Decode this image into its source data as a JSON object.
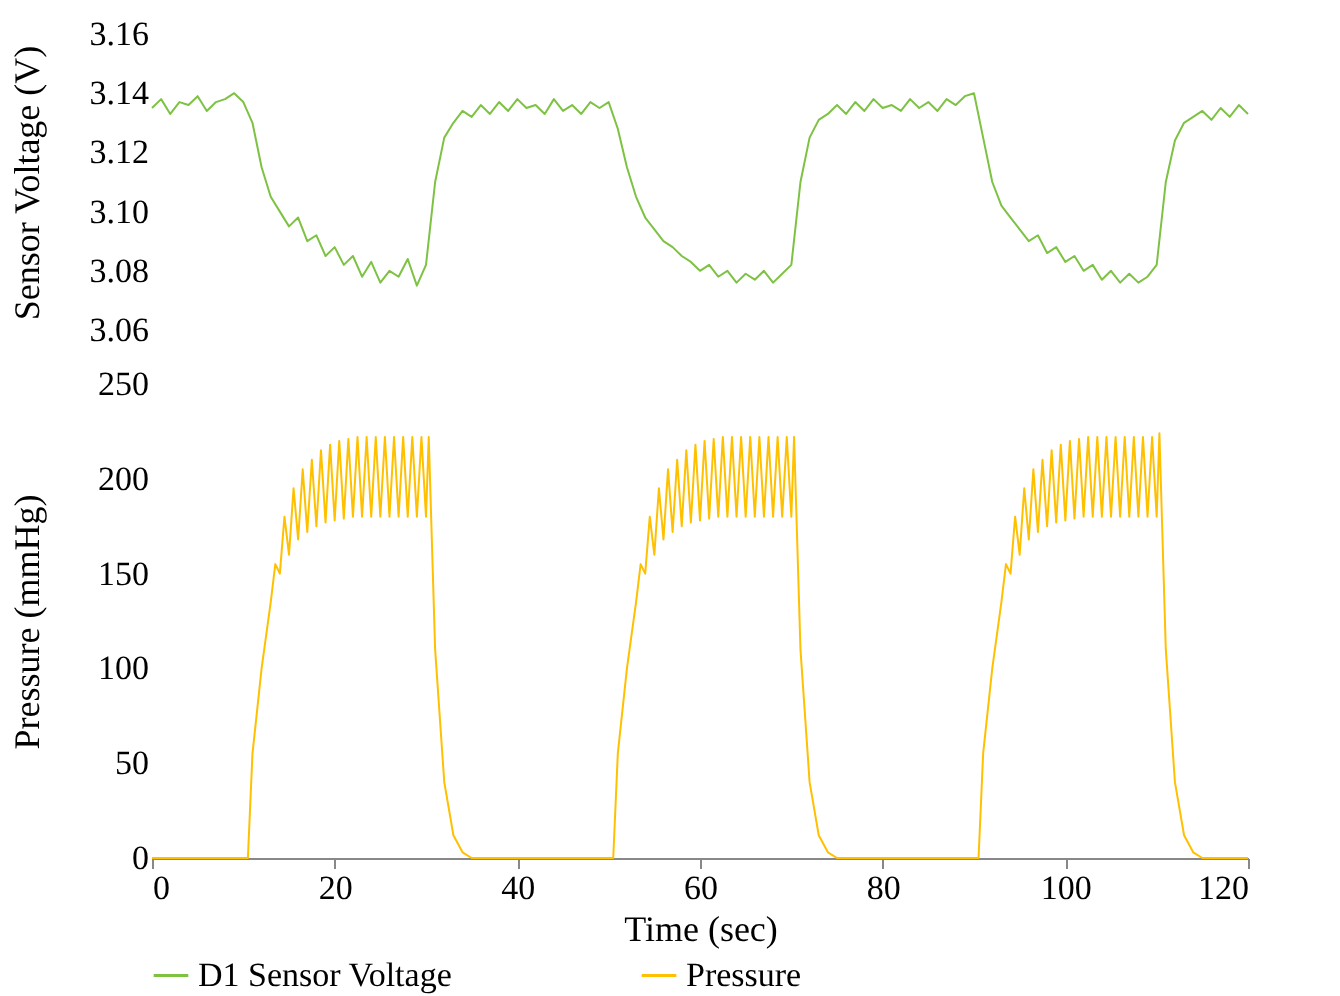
{
  "chart_data": [
    {
      "type": "line",
      "ylabel": "Sensor Voltage (V)",
      "xlim": [
        0,
        120
      ],
      "xticks": [
        0,
        20,
        40,
        60,
        80,
        100,
        120
      ],
      "ylim": [
        3.06,
        3.16
      ],
      "yticks": [
        3.06,
        3.08,
        {
          "value": 3.1,
          "label": "3.10"
        },
        3.12,
        3.14,
        3.16
      ],
      "tick_labels": "y",
      "grid": false,
      "line_style": "solid",
      "series": [
        {
          "name": "D1 Sensor Voltage",
          "color": "#7dc243",
          "x": [
            0,
            1,
            2,
            3,
            4,
            5,
            6,
            7,
            8,
            9,
            10,
            11,
            12,
            13,
            14,
            15,
            16,
            17,
            18,
            19,
            20,
            21,
            22,
            23,
            24,
            25,
            26,
            27,
            28,
            29,
            30,
            31,
            32,
            33,
            34,
            35,
            36,
            37,
            38,
            39,
            40,
            41,
            42,
            43,
            44,
            45,
            46,
            47,
            48,
            49,
            50,
            51,
            52,
            53,
            54,
            55,
            56,
            57,
            58,
            59,
            60,
            61,
            62,
            63,
            64,
            65,
            66,
            67,
            68,
            69,
            70,
            71,
            72,
            73,
            74,
            75,
            76,
            77,
            78,
            79,
            80,
            81,
            82,
            83,
            84,
            85,
            86,
            87,
            88,
            89,
            90,
            91,
            92,
            93,
            94,
            95,
            96,
            97,
            98,
            99,
            100,
            101,
            102,
            103,
            104,
            105,
            106,
            107,
            108,
            109,
            110,
            111,
            112,
            113,
            114,
            115,
            116,
            117,
            118,
            119,
            120
          ],
          "values": [
            3.135,
            3.138,
            3.133,
            3.137,
            3.136,
            3.139,
            3.134,
            3.137,
            3.138,
            3.14,
            3.137,
            3.13,
            3.115,
            3.105,
            3.1,
            3.095,
            3.098,
            3.09,
            3.092,
            3.085,
            3.088,
            3.082,
            3.085,
            3.078,
            3.083,
            3.076,
            3.08,
            3.078,
            3.084,
            3.075,
            3.082,
            3.11,
            3.125,
            3.13,
            3.134,
            3.132,
            3.136,
            3.133,
            3.137,
            3.134,
            3.138,
            3.135,
            3.136,
            3.133,
            3.138,
            3.134,
            3.136,
            3.133,
            3.137,
            3.135,
            3.137,
            3.128,
            3.115,
            3.105,
            3.098,
            3.094,
            3.09,
            3.088,
            3.085,
            3.083,
            3.08,
            3.082,
            3.078,
            3.08,
            3.076,
            3.079,
            3.077,
            3.08,
            3.076,
            3.079,
            3.082,
            3.11,
            3.125,
            3.131,
            3.133,
            3.136,
            3.133,
            3.137,
            3.134,
            3.138,
            3.135,
            3.136,
            3.134,
            3.138,
            3.135,
            3.137,
            3.134,
            3.138,
            3.136,
            3.139,
            3.14,
            3.125,
            3.11,
            3.102,
            3.098,
            3.094,
            3.09,
            3.092,
            3.086,
            3.088,
            3.083,
            3.085,
            3.08,
            3.082,
            3.077,
            3.08,
            3.076,
            3.079,
            3.076,
            3.078,
            3.082,
            3.11,
            3.124,
            3.13,
            3.132,
            3.134,
            3.131,
            3.135,
            3.132,
            3.136,
            3.133
          ]
        }
      ]
    },
    {
      "type": "line",
      "xlabel": "Time (sec)",
      "ylabel": "Pressure (mmHg)",
      "xlim": [
        0,
        120
      ],
      "xticks": [
        0,
        20,
        40,
        60,
        80,
        100,
        120
      ],
      "ylim": [
        0,
        250
      ],
      "yticks": [
        0,
        50,
        100,
        150,
        200,
        250
      ],
      "grid": false,
      "legend": "bottom",
      "line_style": "solid",
      "series": [
        {
          "name": "Pressure",
          "color": "#ffc000",
          "x": [
            0,
            10,
            10.5,
            11,
            12,
            13,
            13.5,
            14,
            14.5,
            15,
            15.5,
            16,
            16.5,
            17,
            17.5,
            18,
            18.5,
            19,
            19.5,
            20,
            20.5,
            21,
            21.5,
            22,
            22.5,
            23,
            23.5,
            24,
            24.5,
            25,
            25.5,
            26,
            26.5,
            27,
            27.5,
            28,
            28.5,
            29,
            29.5,
            30,
            30.3,
            31,
            32,
            33,
            34,
            35,
            50,
            50.5,
            51,
            52,
            53,
            53.5,
            54,
            54.5,
            55,
            55.5,
            56,
            56.5,
            57,
            57.5,
            58,
            58.5,
            59,
            59.5,
            60,
            60.5,
            61,
            61.5,
            62,
            62.5,
            63,
            63.5,
            64,
            64.5,
            65,
            65.5,
            66,
            66.5,
            67,
            67.5,
            68,
            68.5,
            69,
            69.5,
            70,
            70.3,
            71,
            72,
            73,
            74,
            75,
            90,
            90.5,
            91,
            92,
            93,
            93.5,
            94,
            94.5,
            95,
            95.5,
            96,
            96.5,
            97,
            97.5,
            98,
            98.5,
            99,
            99.5,
            100,
            100.5,
            101,
            101.5,
            102,
            102.5,
            103,
            103.5,
            104,
            104.5,
            105,
            105.5,
            106,
            106.5,
            107,
            107.5,
            108,
            108.5,
            109,
            109.5,
            110,
            110.3,
            111,
            112,
            113,
            114,
            115,
            120
          ],
          "values": [
            0,
            0,
            0,
            55,
            100,
            135,
            155,
            150,
            180,
            160,
            195,
            168,
            205,
            172,
            210,
            175,
            215,
            177,
            218,
            178,
            220,
            179,
            221,
            180,
            222,
            180,
            222,
            180,
            222,
            180,
            222,
            180,
            222,
            180,
            222,
            180,
            222,
            180,
            222,
            180,
            222,
            110,
            40,
            12,
            3,
            0,
            0,
            0,
            55,
            100,
            135,
            155,
            150,
            180,
            160,
            195,
            168,
            205,
            172,
            210,
            175,
            215,
            177,
            218,
            178,
            220,
            179,
            221,
            180,
            222,
            180,
            222,
            180,
            222,
            180,
            222,
            180,
            222,
            180,
            222,
            180,
            222,
            180,
            222,
            180,
            222,
            110,
            40,
            12,
            3,
            0,
            0,
            0,
            55,
            100,
            135,
            155,
            150,
            180,
            160,
            195,
            168,
            205,
            172,
            210,
            175,
            215,
            177,
            218,
            178,
            220,
            179,
            221,
            180,
            222,
            180,
            222,
            180,
            222,
            180,
            222,
            180,
            222,
            180,
            222,
            180,
            222,
            180,
            222,
            180,
            224,
            110,
            40,
            12,
            3,
            0,
            0
          ]
        }
      ]
    }
  ]
}
